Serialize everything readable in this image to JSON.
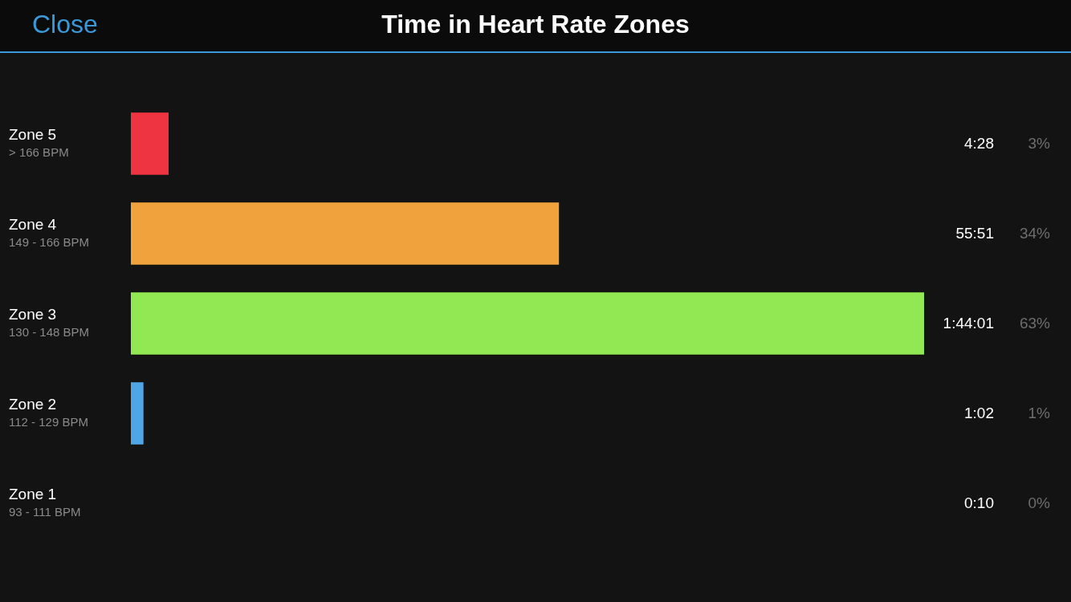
{
  "chart_data": {
    "type": "bar",
    "orientation": "horizontal",
    "title": "Time in Heart Rate Zones",
    "categories": [
      "Zone 5\n> 166 BPM",
      "Zone 4\n149 - 166 BPM",
      "Zone 3\n130 - 148 BPM",
      "Zone 2\n112 - 129 BPM",
      "Zone 1\n93 - 111 BPM"
    ],
    "values": [
      3,
      34,
      63,
      1,
      0
    ],
    "colors": [
      "#ee3440",
      "#f0a33c",
      "#92e852",
      "#4ea6e6",
      "#4ea6e6"
    ],
    "value_labels": [
      "3%",
      "34%",
      "63%",
      "1%",
      "0%"
    ],
    "annotations": [
      "Close",
      "4:28",
      "55:51",
      "1:44:01",
      "1:02",
      "0:10"
    ]
  }
}
